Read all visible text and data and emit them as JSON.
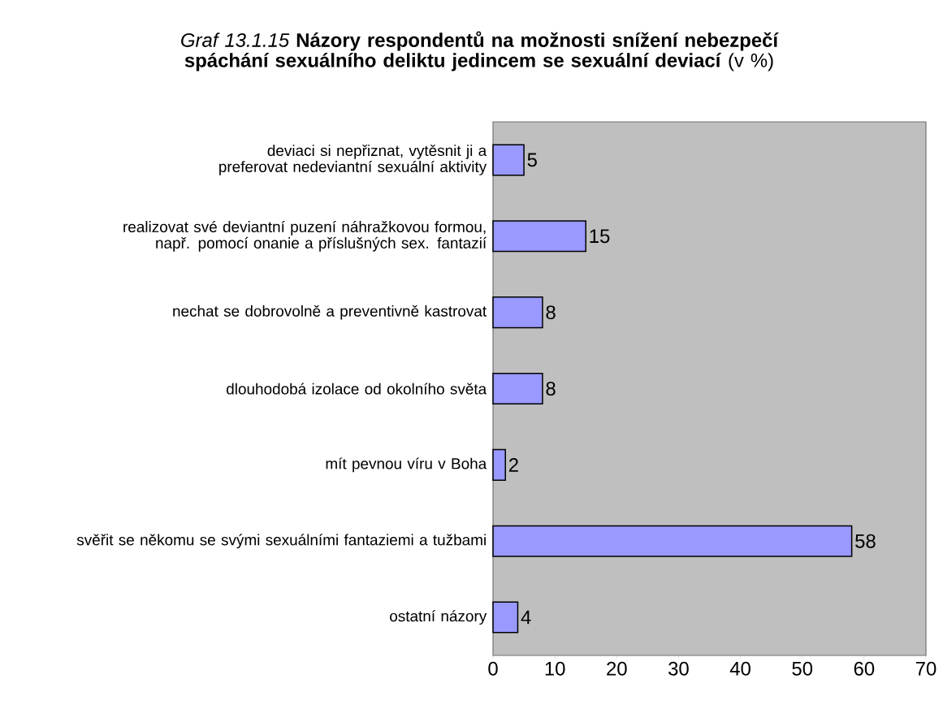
{
  "chart_data": {
    "type": "bar",
    "orientation": "horizontal",
    "title": "*Graf 13.1.15* **Názory respondentů na možnosti snížení nebezpečí spáchání sexuálního deliktu jedincem se sexuální deviací** (v %)",
    "categories": [
      "deviaci si nepřiznat, vytěsnit ji a preferovat nedeviantní sexuální aktivity",
      "realizovat své deviantní puzení náhražkovou formou, např. pomocí onanie a příslušných sex. fantazií",
      "nechat se dobrovolně a preventivně kastrovat",
      "dlouhodobá izolace od okolního světa",
      "mít pevnou víru v Boha",
      "svěřit se někomu se svými sexuálními fantaziemi a tužbami",
      "ostatní názory"
    ],
    "values": [
      5,
      15,
      8,
      8,
      2,
      58,
      4
    ],
    "color": "#9999ff",
    "data_labels": true,
    "xlim": [
      0,
      70
    ],
    "xticks": [
      0,
      10,
      20,
      30,
      40,
      50,
      60,
      70
    ]
  }
}
